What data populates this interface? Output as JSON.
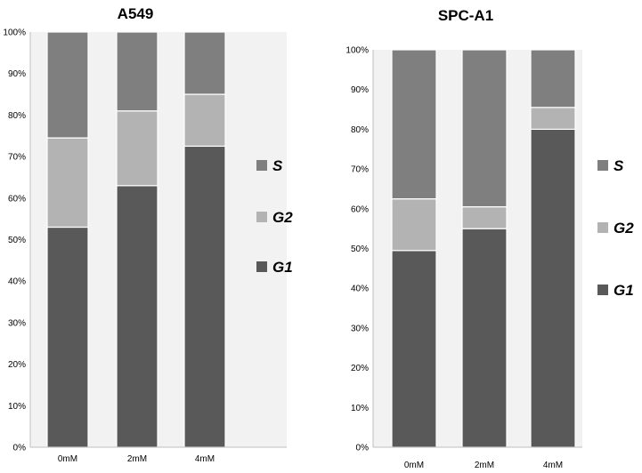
{
  "chart_data": [
    {
      "type": "bar",
      "stacked": true,
      "percent": true,
      "title": "A549",
      "categories": [
        "0mM",
        "2mM",
        "4mM"
      ],
      "series": [
        {
          "name": "G1",
          "values": [
            53,
            63,
            72.5
          ],
          "color": "#595959"
        },
        {
          "name": "G2",
          "values": [
            21.5,
            18,
            12.5
          ],
          "color": "#b3b3b3"
        },
        {
          "name": "S",
          "values": [
            25.5,
            19,
            15
          ],
          "color": "#7f7f7f"
        }
      ],
      "yticks": [
        "0%",
        "10%",
        "20%",
        "30%",
        "40%",
        "50%",
        "60%",
        "70%",
        "80%",
        "90%",
        "100%"
      ],
      "ylim": [
        0,
        100
      ],
      "legend": [
        "S",
        "G2",
        "G1"
      ]
    },
    {
      "type": "bar",
      "stacked": true,
      "percent": true,
      "title": "SPC-A1",
      "categories": [
        "0mM",
        "2mM",
        "4mM"
      ],
      "series": [
        {
          "name": "G1",
          "values": [
            49.5,
            55,
            80
          ],
          "color": "#595959"
        },
        {
          "name": "G2",
          "values": [
            13,
            5.5,
            5.5
          ],
          "color": "#b3b3b3"
        },
        {
          "name": "S",
          "values": [
            37.5,
            39.5,
            14.5
          ],
          "color": "#7f7f7f"
        }
      ],
      "yticks": [
        "0%",
        "10%",
        "20%",
        "30%",
        "40%",
        "50%",
        "60%",
        "70%",
        "80%",
        "90%",
        "100%"
      ],
      "ylim": [
        0,
        100
      ],
      "legend": [
        "S",
        "G2",
        "G1"
      ]
    }
  ]
}
